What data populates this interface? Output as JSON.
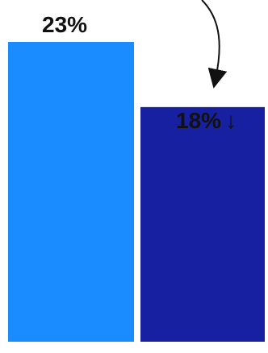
{
  "chart_data": {
    "type": "bar",
    "categories": [
      "",
      ""
    ],
    "values": [
      23,
      18
    ],
    "data_labels": [
      "23%",
      "18%"
    ],
    "colors": [
      "#1A8CFF",
      "#1720A0"
    ],
    "annotations": [
      {
        "type": "arrow",
        "from": "top",
        "to_category_index": 1,
        "meaning": "decrease"
      }
    ],
    "decrease_glyph": "↓",
    "title": "",
    "xlabel": "",
    "ylabel": "",
    "ylim": [
      0,
      23
    ],
    "grid": false,
    "legend": "none"
  }
}
